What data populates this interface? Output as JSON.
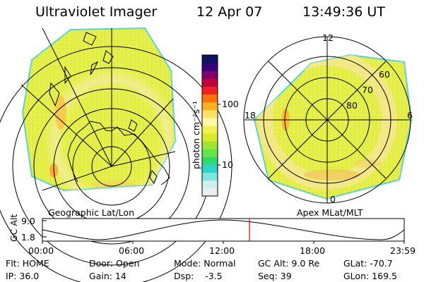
{
  "header": {
    "title": "Ultraviolet Imager",
    "date": "12 Apr 07",
    "time": "13:49:36 UT"
  },
  "colorbar": {
    "unit_label": "photon cm⁻²s⁻¹",
    "tick_labels": [
      "100",
      "10"
    ],
    "colors": [
      "#eeeeee",
      "#cfeeee",
      "#7fe6e0",
      "#2fd6c8",
      "#30d870",
      "#66e24a",
      "#9ee432",
      "#d8ea2a",
      "#f0f050",
      "#fbf8a8",
      "#ffe066",
      "#ffb020",
      "#ff7010",
      "#ee2020",
      "#c0003a",
      "#80006a",
      "#3a007a",
      "#101060"
    ]
  },
  "left_map": {
    "caption": "Geographic Lat/Lon",
    "colors": {
      "fill": "#e4f040",
      "edge": "#55d2d6",
      "glow": "#f2ee9a",
      "hot": "#ffa030"
    }
  },
  "right_map": {
    "caption": "Apex MLat/MLT",
    "mlt_labels": {
      "top": "12",
      "left": "18",
      "right": "6",
      "bottom": "0"
    },
    "lat_labels": [
      "60",
      "70",
      "80"
    ]
  },
  "timeline": {
    "axis_label": "GC Alt",
    "yticks": [
      "9.0",
      "1.8"
    ],
    "xticks": [
      "00:00",
      "06:00",
      "12:00",
      "18:00",
      "23:59"
    ],
    "marker_color": "#e00000"
  },
  "info": {
    "row1": [
      "Flt: HOME",
      "Door: Open",
      "Mode: Normal",
      "GC Alt: 9.0 Re",
      "GLat: -70.7"
    ],
    "row2": [
      "IP: 36.0",
      "Gain: 14",
      "Dsp:    -3.5",
      "Seq: 39",
      "GLon: 169.5"
    ]
  }
}
